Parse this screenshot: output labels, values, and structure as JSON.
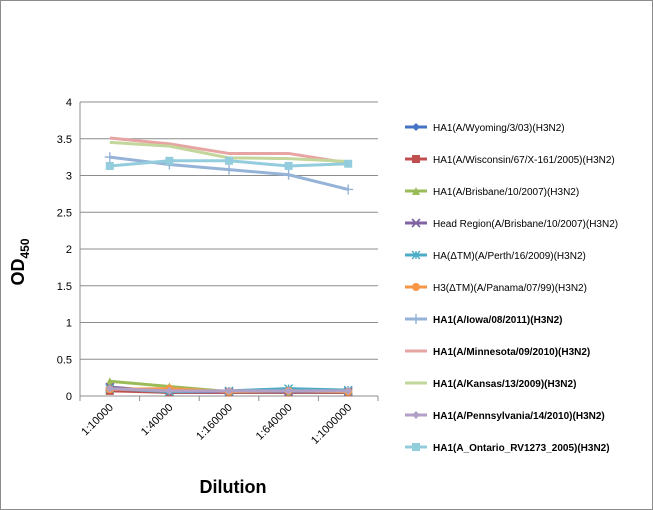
{
  "chart_data": {
    "type": "line",
    "title": "",
    "xlabel": "Dilution",
    "ylabel": "OD",
    "ylabel_subscript": "450",
    "ylim": [
      0,
      4
    ],
    "ytick_labels": [
      "0",
      "0.5",
      "1",
      "1.5",
      "2",
      "2.5",
      "3",
      "3.5",
      "4"
    ],
    "yticks": [
      0,
      0.5,
      1,
      1.5,
      2,
      2.5,
      3,
      3.5,
      4
    ],
    "categories": [
      "1:10000",
      "1:40000",
      "1:160000",
      "1:640000",
      "1:1000000"
    ],
    "grid": "horizontal",
    "legend_position": "right",
    "series": [
      {
        "name": "HA1(A/Wyoming/3/03)(H3N2)",
        "color": "#4472C4",
        "marker": "diamond",
        "bold": false,
        "values": [
          0.08,
          0.05,
          0.05,
          0.05,
          0.05
        ]
      },
      {
        "name": "HA1(A/Wisconsin/67/X-161/2005)(H3N2)",
        "color": "#C0504D",
        "marker": "square",
        "bold": false,
        "values": [
          0.07,
          0.05,
          0.05,
          0.05,
          0.05
        ]
      },
      {
        "name": "HA1(A/Brisbane/10/2007)(H3N2)",
        "color": "#9BBB59",
        "marker": "triangle",
        "bold": false,
        "values": [
          0.2,
          0.13,
          0.06,
          0.06,
          0.06
        ]
      },
      {
        "name": "Head Region(A/Brisbane/10/2007)(H3N2)",
        "color": "#8064A2",
        "marker": "x",
        "bold": false,
        "values": [
          0.12,
          0.06,
          0.06,
          0.06,
          0.06
        ]
      },
      {
        "name": "HA(ΔTM)(A/Perth/16/2009)(H3N2)",
        "color": "#4BACC6",
        "marker": "star",
        "bold": false,
        "values": [
          0.1,
          0.06,
          0.07,
          0.1,
          0.08
        ]
      },
      {
        "name": "H3(ΔTM)(A/Panama/07/99)(H3N2)",
        "color": "#F79646",
        "marker": "circle",
        "bold": false,
        "values": [
          0.09,
          0.1,
          0.06,
          0.07,
          0.06
        ]
      },
      {
        "name": "HA1(A/Iowa/08/2011)(H3N2)",
        "color": "#95B3D7",
        "marker": "plus",
        "bold": true,
        "values": [
          3.25,
          3.15,
          3.08,
          3.01,
          2.81
        ]
      },
      {
        "name": "HA1(A/Minnesota/09/2010)(H3N2)",
        "color": "#E6A5A3",
        "marker": "none",
        "bold": true,
        "values": [
          3.51,
          3.43,
          3.3,
          3.3,
          3.17
        ]
      },
      {
        "name": "HA1(A/Kansas/13/2009)(H3N2)",
        "color": "#C3D69B",
        "marker": "none",
        "bold": true,
        "values": [
          3.45,
          3.4,
          3.24,
          3.23,
          3.19
        ]
      },
      {
        "name": "HA1(A/Pennsylvania/14/2010)(H3N2)",
        "color": "#B2A1C7",
        "marker": "diamond",
        "bold": true,
        "values": [
          0.1,
          0.07,
          0.07,
          0.07,
          0.07
        ]
      },
      {
        "name": "HA1(A_Ontario_RV1273_2005)(H3N2)",
        "color": "#93CDDD",
        "marker": "square",
        "bold": true,
        "values": [
          3.13,
          3.2,
          3.2,
          3.13,
          3.16
        ]
      }
    ]
  }
}
